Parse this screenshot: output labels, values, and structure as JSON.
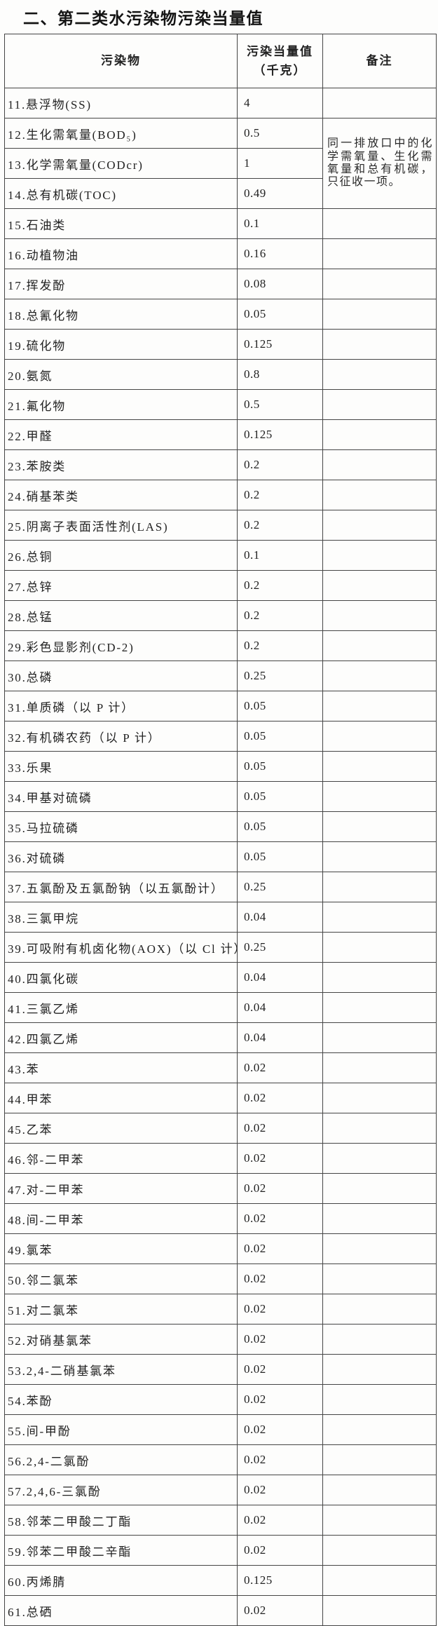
{
  "title": "二、第二类水污染物污染当量值",
  "table": {
    "headers": {
      "pollutant": "污染物",
      "value": "污染当量值\n（千克）",
      "remark": "备注"
    },
    "rows": [
      {
        "pollutant": "11.悬浮物(SS)",
        "value": "4"
      },
      {
        "pollutant": "12.生化需氧量(BOD₅)",
        "value": "0.5",
        "remark": "同一排放口中的化学需氧量、生化需氧量和总有机碳，只征收一项。",
        "remark_rowspan": 3
      },
      {
        "pollutant": "13.化学需氧量(CODcr)",
        "value": "1",
        "remark_skip": true
      },
      {
        "pollutant": "14.总有机碳(TOC)",
        "value": "0.49",
        "remark_skip": true
      },
      {
        "pollutant": "15.石油类",
        "value": "0.1"
      },
      {
        "pollutant": "16.动植物油",
        "value": "0.16"
      },
      {
        "pollutant": "17.挥发酚",
        "value": "0.08"
      },
      {
        "pollutant": "18.总氰化物",
        "value": "0.05"
      },
      {
        "pollutant": "19.硫化物",
        "value": "0.125"
      },
      {
        "pollutant": "20.氨氮",
        "value": "0.8"
      },
      {
        "pollutant": "21.氟化物",
        "value": "0.5"
      },
      {
        "pollutant": "22.甲醛",
        "value": "0.125"
      },
      {
        "pollutant": "23.苯胺类",
        "value": "0.2"
      },
      {
        "pollutant": "24.硝基苯类",
        "value": "0.2"
      },
      {
        "pollutant": "25.阴离子表面活性剂(LAS)",
        "value": "0.2"
      },
      {
        "pollutant": "26.总铜",
        "value": "0.1"
      },
      {
        "pollutant": "27.总锌",
        "value": "0.2"
      },
      {
        "pollutant": "28.总锰",
        "value": "0.2"
      },
      {
        "pollutant": "29.彩色显影剂(CD-2)",
        "value": "0.2"
      },
      {
        "pollutant": "30.总磷",
        "value": "0.25"
      },
      {
        "pollutant": "31.单质磷（以 P 计）",
        "value": "0.05"
      },
      {
        "pollutant": "32.有机磷农药（以 P 计）",
        "value": "0.05"
      },
      {
        "pollutant": "33.乐果",
        "value": "0.05"
      },
      {
        "pollutant": "34.甲基对硫磷",
        "value": "0.05"
      },
      {
        "pollutant": "35.马拉硫磷",
        "value": "0.05"
      },
      {
        "pollutant": "36.对硫磷",
        "value": "0.05"
      },
      {
        "pollutant": "37.五氯酚及五氯酚钠（以五氯酚计）",
        "value": "0.25"
      },
      {
        "pollutant": "38.三氯甲烷",
        "value": "0.04"
      },
      {
        "pollutant": "39.可吸附有机卤化物(AOX)（以 Cl 计）",
        "value": "0.25"
      },
      {
        "pollutant": "40.四氯化碳",
        "value": "0.04"
      },
      {
        "pollutant": "41.三氯乙烯",
        "value": "0.04"
      },
      {
        "pollutant": "42.四氯乙烯",
        "value": "0.04"
      },
      {
        "pollutant": "43.苯",
        "value": "0.02"
      },
      {
        "pollutant": "44.甲苯",
        "value": "0.02"
      },
      {
        "pollutant": "45.乙苯",
        "value": "0.02"
      },
      {
        "pollutant": "46.邻-二甲苯",
        "value": "0.02"
      },
      {
        "pollutant": "47.对-二甲苯",
        "value": "0.02"
      },
      {
        "pollutant": "48.间-二甲苯",
        "value": "0.02"
      },
      {
        "pollutant": "49.氯苯",
        "value": "0.02"
      },
      {
        "pollutant": "50.邻二氯苯",
        "value": "0.02"
      },
      {
        "pollutant": "51.对二氯苯",
        "value": "0.02"
      },
      {
        "pollutant": "52.对硝基氯苯",
        "value": "0.02"
      },
      {
        "pollutant": "53.2,4-二硝基氯苯",
        "value": "0.02"
      },
      {
        "pollutant": "54.苯酚",
        "value": "0.02"
      },
      {
        "pollutant": "55.间-甲酚",
        "value": "0.02"
      },
      {
        "pollutant": "56.2,4-二氯酚",
        "value": "0.02"
      },
      {
        "pollutant": "57.2,4,6-三氯酚",
        "value": "0.02"
      },
      {
        "pollutant": "58.邻苯二甲酸二丁酯",
        "value": "0.02"
      },
      {
        "pollutant": "59.邻苯二甲酸二辛酯",
        "value": "0.02"
      },
      {
        "pollutant": "60.丙烯腈",
        "value": "0.125"
      },
      {
        "pollutant": "61.总硒",
        "value": "0.02"
      }
    ]
  }
}
